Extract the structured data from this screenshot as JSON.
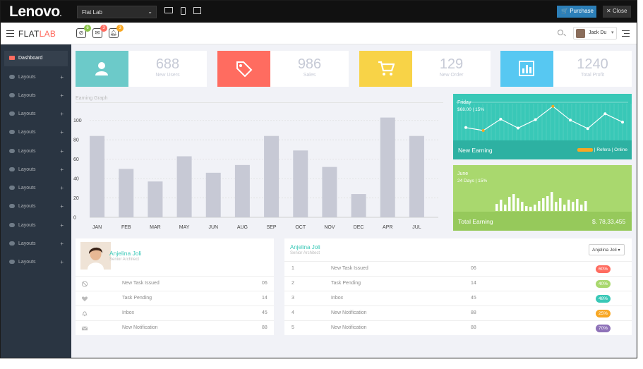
{
  "preview_bar": {
    "brand": "Lenovo",
    "brand_dot": ".",
    "theme_select": "Flat Lab",
    "purchase_label": "Purchase",
    "close_label": "Close"
  },
  "header": {
    "logo_main": "FLAT",
    "logo_accent": "LAB",
    "notifications": [
      {
        "name": "tasks",
        "count": "6",
        "color": "#8bc34a"
      },
      {
        "name": "inbox",
        "count": "3",
        "color": "#ff6c60"
      },
      {
        "name": "alerts",
        "count": "3",
        "color": "#f8a723"
      }
    ],
    "user_name": "Jack Du"
  },
  "sidebar": {
    "items": [
      {
        "label": "Dashboard",
        "active": true
      },
      {
        "label": "Layouts"
      },
      {
        "label": "Layouts"
      },
      {
        "label": "Layouts"
      },
      {
        "label": "Layouts"
      },
      {
        "label": "Layouts"
      },
      {
        "label": "Layouts"
      },
      {
        "label": "Layouts"
      },
      {
        "label": "Layouts"
      },
      {
        "label": "Layouts"
      },
      {
        "label": "Layouts"
      },
      {
        "label": "Layouts"
      }
    ]
  },
  "stats": [
    {
      "value": "688",
      "label": "New Users",
      "color": "#6ccac9",
      "icon": "user-icon"
    },
    {
      "value": "986",
      "label": "Sales",
      "color": "#ff6c60",
      "icon": "tag-icon"
    },
    {
      "value": "129",
      "label": "New Order",
      "color": "#f8d347",
      "icon": "cart-icon"
    },
    {
      "value": "1240",
      "label": "Total Profit",
      "color": "#57c8f2",
      "icon": "bar-chart-icon"
    }
  ],
  "earning_graph": {
    "title": "Earning Graph"
  },
  "chart_data": {
    "type": "bar",
    "title": "Earning Graph",
    "categories": [
      "JAN",
      "FEB",
      "MAR",
      "MAY",
      "JUN",
      "AUG",
      "SEP",
      "OCT",
      "NOV",
      "DEC",
      "APR",
      "JUL"
    ],
    "values": [
      84,
      50,
      37,
      63,
      46,
      54,
      84,
      69,
      52,
      24,
      103,
      84
    ],
    "yticks": [
      "0",
      "20",
      "40",
      "60",
      "80",
      "100"
    ],
    "ylim": [
      0,
      110
    ],
    "grid": true
  },
  "line_widget": {
    "day": "Friday",
    "summary": "$68.00 | 15%",
    "footer_label": "New  Earning",
    "footer_right_1": "Refera",
    "footer_right_2": "Online",
    "points": [
      56,
      50,
      73,
      55,
      72,
      99,
      71,
      54,
      84,
      67
    ]
  },
  "bar_widget": {
    "month": "June",
    "summary": "24 Days | 15%",
    "footer_label": "Total Earning",
    "footer_value": "$. 78,33,455",
    "bars": [
      10,
      16,
      9,
      20,
      24,
      18,
      13,
      7,
      6,
      9,
      14,
      18,
      21,
      27,
      13,
      18,
      9,
      16,
      13,
      17,
      9,
      14
    ]
  },
  "profile": {
    "name": "Anjelina  Joli",
    "title": "Senior Architect",
    "rows": [
      {
        "label": "New Task Issued",
        "count": "06"
      },
      {
        "label": "Task Pending",
        "count": "14"
      },
      {
        "label": "Inbox",
        "count": "45"
      },
      {
        "label": "New  Notification",
        "count": "88"
      }
    ]
  },
  "task_table": {
    "name": "Anjelina  Joli",
    "title": "Senior Architect",
    "select_value": "Anjelina Joli",
    "rows": [
      {
        "num": "1",
        "label": "New Task Issued",
        "count": "06",
        "pct": "60%",
        "color": "#ff6c60"
      },
      {
        "num": "2",
        "label": "Task Pending",
        "count": "14",
        "pct": "40%",
        "color": "#a9d86e"
      },
      {
        "num": "3",
        "label": "Inbox",
        "count": "45",
        "pct": "48%",
        "color": "#39c8b7"
      },
      {
        "num": "4",
        "label": "New  Notification",
        "count": "88",
        "pct": "25%",
        "color": "#f8a723"
      },
      {
        "num": "5",
        "label": "New  Notification",
        "count": "88",
        "pct": "70%",
        "color": "#8e72b8"
      }
    ]
  }
}
